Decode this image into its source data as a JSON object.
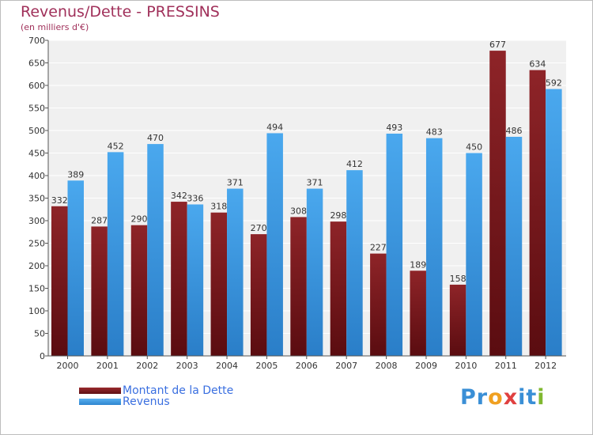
{
  "chart_data": {
    "type": "bar",
    "title": "Revenus/Dette - PRESSINS",
    "subtitle": "(en milliers d'€)",
    "categories": [
      "2000",
      "2001",
      "2002",
      "2003",
      "2004",
      "2005",
      "2006",
      "2007",
      "2008",
      "2009",
      "2010",
      "2011",
      "2012"
    ],
    "series": [
      {
        "name": "Montant de la Dette",
        "color": "#7a1a1e",
        "values": [
          332,
          287,
          290,
          342,
          318,
          270,
          308,
          298,
          227,
          189,
          158,
          677,
          634
        ]
      },
      {
        "name": "Revenus",
        "color": "#3f9fe6",
        "values": [
          389,
          452,
          470,
          336,
          371,
          494,
          371,
          412,
          493,
          483,
          450,
          486,
          592
        ]
      }
    ],
    "yticks": [
      0,
      50,
      100,
      150,
      200,
      250,
      300,
      350,
      400,
      450,
      500,
      550,
      600,
      650,
      700
    ],
    "ylim": [
      0,
      700
    ],
    "xlabel": "",
    "ylabel": "",
    "grid": true,
    "legend_position": "bottom-left"
  },
  "logo": {
    "letters": [
      {
        "ch": "P",
        "color": "#3a8fd6"
      },
      {
        "ch": "r",
        "color": "#3a8fd6"
      },
      {
        "ch": "o",
        "color": "#f0a020"
      },
      {
        "ch": "x",
        "color": "#e04040"
      },
      {
        "ch": "i",
        "color": "#3a8fd6"
      },
      {
        "ch": "t",
        "color": "#3a8fd6"
      },
      {
        "ch": "i",
        "color": "#80b830"
      }
    ]
  }
}
